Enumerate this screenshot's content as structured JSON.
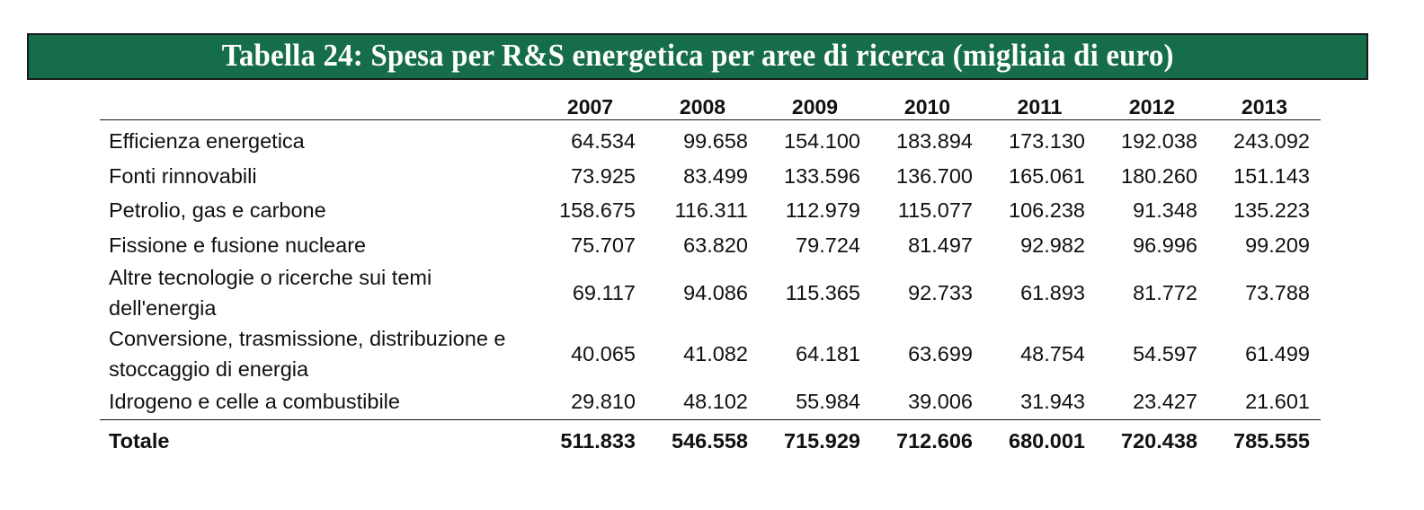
{
  "title": "Tabella 24: Spesa per R&S energetica per aree di ricerca (migliaia di euro)",
  "colors": {
    "banner_bg": "#166d4a",
    "banner_text": "#ffffff",
    "text": "#111111"
  },
  "table": {
    "columns": [
      "",
      "2007",
      "2008",
      "2009",
      "2010",
      "2011",
      "2012",
      "2013"
    ],
    "rows": [
      {
        "label": "Efficienza energetica",
        "values": [
          "64.534",
          "99.658",
          "154.100",
          "183.894",
          "173.130",
          "192.038",
          "243.092"
        ]
      },
      {
        "label": "Fonti rinnovabili",
        "values": [
          "73.925",
          "83.499",
          "133.596",
          "136.700",
          "165.061",
          "180.260",
          "151.143"
        ]
      },
      {
        "label": "Petrolio, gas e carbone",
        "values": [
          "158.675",
          "116.311",
          "112.979",
          "115.077",
          "106.238",
          "91.348",
          "135.223"
        ]
      },
      {
        "label": "Fissione e fusione nucleare",
        "values": [
          "75.707",
          "63.820",
          "79.724",
          "81.497",
          "92.982",
          "96.996",
          "99.209"
        ]
      },
      {
        "label": "Altre tecnologie o ricerche sui temi dell'energia",
        "values": [
          "69.117",
          "94.086",
          "115.365",
          "92.733",
          "61.893",
          "81.772",
          "73.788"
        ]
      },
      {
        "label": "Conversione, trasmissione, distribuzione e stoccaggio di energia",
        "values": [
          "40.065",
          "41.082",
          "64.181",
          "63.699",
          "48.754",
          "54.597",
          "61.499"
        ]
      },
      {
        "label": "Idrogeno e celle a combustibile",
        "values": [
          "29.810",
          "48.102",
          "55.984",
          "39.006",
          "31.943",
          "23.427",
          "21.601"
        ]
      }
    ],
    "total": {
      "label": "Totale",
      "values": [
        "511.833",
        "546.558",
        "715.929",
        "712.606",
        "680.001",
        "720.438",
        "785.555"
      ]
    }
  },
  "chart_data": {
    "type": "table",
    "title": "Tabella 24: Spesa per R&S energetica per aree di ricerca (migliaia di euro)",
    "categories": [
      "2007",
      "2008",
      "2009",
      "2010",
      "2011",
      "2012",
      "2013"
    ],
    "series": [
      {
        "name": "Efficienza energetica",
        "values": [
          64534,
          99658,
          154100,
          183894,
          173130,
          192038,
          243092
        ]
      },
      {
        "name": "Fonti rinnovabili",
        "values": [
          73925,
          83499,
          133596,
          136700,
          165061,
          180260,
          151143
        ]
      },
      {
        "name": "Petrolio, gas e carbone",
        "values": [
          158675,
          116311,
          112979,
          115077,
          106238,
          91348,
          135223
        ]
      },
      {
        "name": "Fissione e fusione nucleare",
        "values": [
          75707,
          63820,
          79724,
          81497,
          92982,
          96996,
          99209
        ]
      },
      {
        "name": "Altre tecnologie o ricerche sui temi dell'energia",
        "values": [
          69117,
          94086,
          115365,
          92733,
          61893,
          81772,
          73788
        ]
      },
      {
        "name": "Conversione, trasmissione, distribuzione e stoccaggio di energia",
        "values": [
          40065,
          41082,
          64181,
          63699,
          48754,
          54597,
          61499
        ]
      },
      {
        "name": "Idrogeno e celle a combustibile",
        "values": [
          29810,
          48102,
          55984,
          39006,
          31943,
          23427,
          21601
        ]
      },
      {
        "name": "Totale",
        "values": [
          511833,
          546558,
          715929,
          712606,
          680001,
          720438,
          785555
        ]
      }
    ],
    "unit": "migliaia di euro"
  }
}
